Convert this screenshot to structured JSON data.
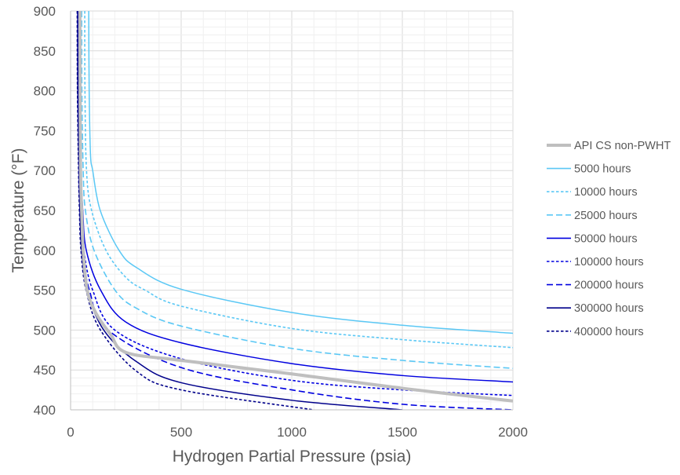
{
  "chart_data": {
    "type": "line",
    "title": "",
    "xlabel": "Hydrogen Partial Pressure (psia)",
    "ylabel": "Temperature (°F)",
    "xlim": [
      0,
      2000
    ],
    "ylim": [
      400,
      900
    ],
    "xticks": [
      0,
      500,
      1000,
      1500,
      2000
    ],
    "yticks": [
      400,
      450,
      500,
      550,
      600,
      650,
      700,
      750,
      800,
      850,
      900
    ],
    "grid": true,
    "legend_position": "right",
    "series": [
      {
        "name": "API CS non-PWHT",
        "color": "#BFBFBF",
        "style": "solid-thick",
        "points": [
          [
            42,
            900
          ],
          [
            43,
            800
          ],
          [
            45,
            700
          ],
          [
            50,
            650
          ],
          [
            57,
            600
          ],
          [
            75,
            550
          ],
          [
            117,
            520
          ],
          [
            180,
            495
          ],
          [
            250,
            472
          ],
          [
            500,
            462
          ],
          [
            1000,
            445
          ],
          [
            1500,
            427
          ],
          [
            2000,
            411
          ]
        ]
      },
      {
        "name": "5000 hours",
        "color": "#5BC8F5",
        "style": "solid",
        "points": [
          [
            82,
            900
          ],
          [
            84,
            800
          ],
          [
            90,
            720
          ],
          [
            100,
            700
          ],
          [
            134,
            650
          ],
          [
            219,
            600
          ],
          [
            300,
            578
          ],
          [
            502,
            551
          ],
          [
            1000,
            522
          ],
          [
            1500,
            506
          ],
          [
            2000,
            496
          ]
        ]
      },
      {
        "name": "10000 hours",
        "color": "#5BC8F5",
        "style": "short-dash",
        "points": [
          [
            64,
            900
          ],
          [
            65,
            800
          ],
          [
            72,
            700
          ],
          [
            95,
            650
          ],
          [
            160,
            600
          ],
          [
            250,
            566
          ],
          [
            337,
            550
          ],
          [
            500,
            530
          ],
          [
            1000,
            502
          ],
          [
            1500,
            488
          ],
          [
            2000,
            478
          ]
        ]
      },
      {
        "name": "25000 hours",
        "color": "#5BC8F5",
        "style": "long-dash",
        "points": [
          [
            50,
            900
          ],
          [
            51,
            800
          ],
          [
            57,
            700
          ],
          [
            67,
            650
          ],
          [
            106,
            600
          ],
          [
            201,
            550
          ],
          [
            300,
            527
          ],
          [
            500,
            505
          ],
          [
            1000,
            477
          ],
          [
            1500,
            462
          ],
          [
            2000,
            452
          ]
        ]
      },
      {
        "name": "50000 hours",
        "color": "#0000E0",
        "style": "solid",
        "points": [
          [
            40,
            900
          ],
          [
            41,
            800
          ],
          [
            47,
            700
          ],
          [
            55,
            650
          ],
          [
            71,
            600
          ],
          [
            136,
            550
          ],
          [
            250,
            510
          ],
          [
            500,
            484
          ],
          [
            1000,
            458
          ],
          [
            1500,
            443
          ],
          [
            2000,
            435
          ]
        ]
      },
      {
        "name": "100000 hours",
        "color": "#0000E0",
        "style": "short-dash",
        "points": [
          [
            36,
            900
          ],
          [
            37,
            800
          ],
          [
            42,
            700
          ],
          [
            48,
            650
          ],
          [
            60,
            600
          ],
          [
            100,
            550
          ],
          [
            200,
            500
          ],
          [
            500,
            464
          ],
          [
            1000,
            437
          ],
          [
            1500,
            425
          ],
          [
            2000,
            418
          ]
        ]
      },
      {
        "name": "200000 hours",
        "color": "#0000E0",
        "style": "long-dash",
        "points": [
          [
            34,
            900
          ],
          [
            35,
            800
          ],
          [
            40,
            700
          ],
          [
            45,
            650
          ],
          [
            55,
            600
          ],
          [
            85,
            550
          ],
          [
            170,
            500
          ],
          [
            500,
            453
          ],
          [
            1000,
            425
          ],
          [
            1500,
            407
          ],
          [
            2000,
            400
          ]
        ]
      },
      {
        "name": "300000 hours",
        "color": "#00008B",
        "style": "solid",
        "points": [
          [
            32,
            900
          ],
          [
            33,
            800
          ],
          [
            38,
            700
          ],
          [
            42,
            650
          ],
          [
            50,
            600
          ],
          [
            75,
            550
          ],
          [
            150,
            500
          ],
          [
            300,
            460
          ],
          [
            500,
            434
          ],
          [
            1000,
            412
          ],
          [
            1500,
            400
          ]
        ]
      },
      {
        "name": "400000 hours",
        "color": "#00008B",
        "style": "short-dash",
        "points": [
          [
            30,
            900
          ],
          [
            31,
            800
          ],
          [
            36,
            700
          ],
          [
            40,
            650
          ],
          [
            47,
            600
          ],
          [
            70,
            550
          ],
          [
            135,
            500
          ],
          [
            300,
            448
          ],
          [
            500,
            425
          ],
          [
            1100,
            400
          ]
        ]
      }
    ]
  }
}
